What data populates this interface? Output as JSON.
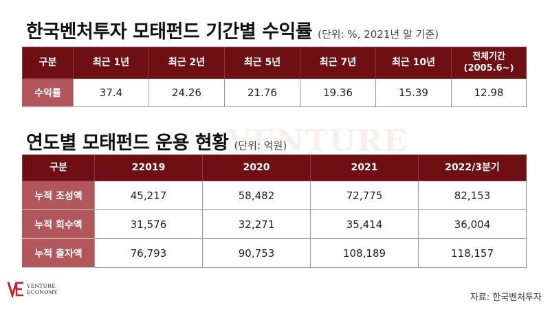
{
  "watermark": "VENTURE",
  "returns": {
    "title": "한국벤처투자 모태펀드 기간별 수익률",
    "unit": "(단위: %, 2021년 말 기준)",
    "header": [
      "구분",
      "최근 1년",
      "최근 2년",
      "최근 5년",
      "최근 7년",
      "최근 10년",
      "전체기간\n(2005.6~)"
    ],
    "row": {
      "label": "수익률",
      "values": [
        "37.4",
        "24.26",
        "21.76",
        "19.36",
        "15.39",
        "12.98"
      ]
    }
  },
  "yearly": {
    "title": "연도별 모태펀드 운용 현황",
    "unit": "(단위: 억원)",
    "header": [
      "구분",
      "22019",
      "2020",
      "2021",
      "2022/3분기"
    ],
    "rows": [
      {
        "label": "누적 조성액",
        "values": [
          "45,217",
          "58,482",
          "72,775",
          "82,153"
        ]
      },
      {
        "label": "누적 회수액",
        "values": [
          "31,576",
          "32,271",
          "35,414",
          "36,004"
        ]
      },
      {
        "label": "누적 출자액",
        "values": [
          "76,793",
          "90,753",
          "108,189",
          "118,157"
        ]
      }
    ]
  },
  "logo": {
    "mark": "VE",
    "line1": "VENTURE",
    "line2": "ECONOMY"
  },
  "source": "자료: 한국벤처투자",
  "colors": {
    "header": "#6e1013",
    "rowhead": "#b1575c",
    "logo": "#c0202a"
  }
}
